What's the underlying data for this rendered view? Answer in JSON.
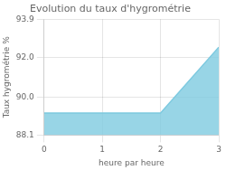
{
  "chart_data": {
    "type": "area",
    "title": "Evolution du taux d'hygrométrie",
    "xlabel": "heure par heure",
    "ylabel": "Taux hygrométrie %",
    "x": [
      0,
      1,
      2,
      3
    ],
    "values": [
      89.2,
      89.2,
      89.2,
      92.5
    ],
    "color": "#7ecae0",
    "xlim": [
      0,
      3
    ],
    "ylim": [
      88.1,
      93.9
    ],
    "xticks": [
      0,
      1,
      2,
      3
    ],
    "yticks": [
      88.1,
      {
        "value": 90,
        "label": "90.0"
      },
      {
        "value": 92,
        "label": "92.0"
      },
      93.9
    ],
    "grid": true
  }
}
